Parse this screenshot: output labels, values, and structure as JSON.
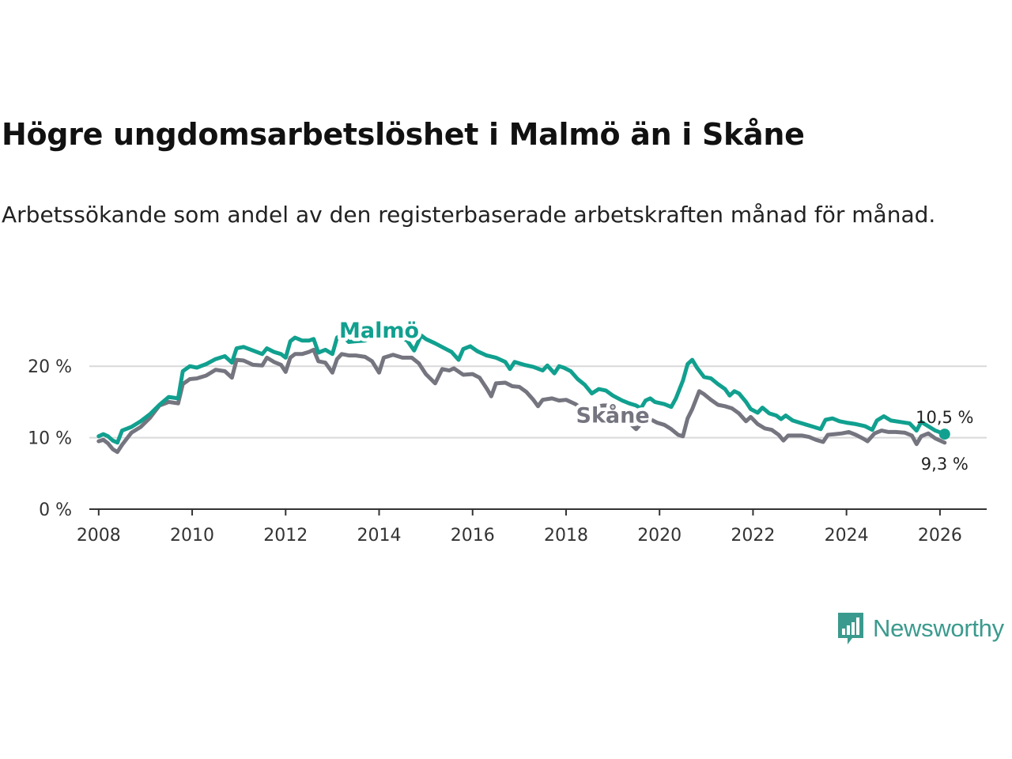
{
  "title": "Högre ungdomsarbetslöshet i Malmö än i Skåne",
  "subtitle": "Arbetssökande som andel av den registerbaserade arbetskraften månad för månad.",
  "brand": {
    "name": "Newsworthy",
    "color": "#3b9a8e",
    "icon": "bar-chart-speech-bubble-icon"
  },
  "chart_data": {
    "type": "line",
    "xlim": [
      2007.8,
      2027.0
    ],
    "ylim": [
      0,
      25
    ],
    "xticks": [
      2008,
      2010,
      2012,
      2014,
      2016,
      2018,
      2020,
      2022,
      2024,
      2026
    ],
    "xtick_labels": [
      "2008",
      "2010",
      "2012",
      "2014",
      "2016",
      "2018",
      "2020",
      "2022",
      "2024",
      "2026"
    ],
    "yticks": [
      0,
      10,
      20
    ],
    "ytick_labels": [
      "0 %",
      "10 %",
      "20 %"
    ],
    "grid": "horizontal",
    "series": [
      {
        "name": "Malmö",
        "color": "#11a08f",
        "label_at": [
          2014.0,
          24.0
        ],
        "end_label": "10,5 %",
        "points": [
          [
            2008.0,
            10.2
          ],
          [
            2008.1,
            10.5
          ],
          [
            2008.2,
            10.2
          ],
          [
            2008.3,
            9.6
          ],
          [
            2008.4,
            9.3
          ],
          [
            2008.5,
            11.0
          ],
          [
            2008.7,
            11.5
          ],
          [
            2008.9,
            12.3
          ],
          [
            2009.1,
            13.3
          ],
          [
            2009.3,
            14.6
          ],
          [
            2009.5,
            15.7
          ],
          [
            2009.7,
            15.5
          ],
          [
            2009.8,
            19.3
          ],
          [
            2009.95,
            20.0
          ],
          [
            2010.1,
            19.8
          ],
          [
            2010.3,
            20.3
          ],
          [
            2010.5,
            21.0
          ],
          [
            2010.7,
            21.4
          ],
          [
            2010.85,
            20.5
          ],
          [
            2010.95,
            22.5
          ],
          [
            2011.1,
            22.7
          ],
          [
            2011.3,
            22.2
          ],
          [
            2011.5,
            21.7
          ],
          [
            2011.6,
            22.5
          ],
          [
            2011.75,
            22.0
          ],
          [
            2011.9,
            21.7
          ],
          [
            2012.0,
            21.2
          ],
          [
            2012.1,
            23.5
          ],
          [
            2012.2,
            24.0
          ],
          [
            2012.35,
            23.6
          ],
          [
            2012.5,
            23.6
          ],
          [
            2012.6,
            23.8
          ],
          [
            2012.7,
            21.9
          ],
          [
            2012.85,
            22.3
          ],
          [
            2013.0,
            21.7
          ],
          [
            2013.1,
            24.0
          ],
          [
            2013.2,
            24.4
          ],
          [
            2013.35,
            23.4
          ],
          [
            2013.5,
            23.5
          ],
          [
            2013.7,
            23.6
          ],
          [
            2013.85,
            24.1
          ],
          [
            2014.0,
            24.4
          ],
          [
            2014.2,
            24.6
          ],
          [
            2014.4,
            24.2
          ],
          [
            2014.6,
            23.6
          ],
          [
            2014.75,
            22.2
          ],
          [
            2014.9,
            24.3
          ],
          [
            2015.0,
            23.8
          ],
          [
            2015.2,
            23.2
          ],
          [
            2015.4,
            22.5
          ],
          [
            2015.55,
            22.0
          ],
          [
            2015.7,
            20.9
          ],
          [
            2015.8,
            22.4
          ],
          [
            2015.95,
            22.8
          ],
          [
            2016.1,
            22.1
          ],
          [
            2016.3,
            21.5
          ],
          [
            2016.5,
            21.2
          ],
          [
            2016.7,
            20.6
          ],
          [
            2016.8,
            19.6
          ],
          [
            2016.9,
            20.6
          ],
          [
            2017.1,
            20.2
          ],
          [
            2017.3,
            19.9
          ],
          [
            2017.5,
            19.4
          ],
          [
            2017.6,
            20.1
          ],
          [
            2017.75,
            19.0
          ],
          [
            2017.85,
            20.0
          ],
          [
            2017.95,
            19.8
          ],
          [
            2018.1,
            19.3
          ],
          [
            2018.25,
            18.2
          ],
          [
            2018.4,
            17.4
          ],
          [
            2018.55,
            16.2
          ],
          [
            2018.7,
            16.8
          ],
          [
            2018.85,
            16.6
          ],
          [
            2019.0,
            15.9
          ],
          [
            2019.2,
            15.2
          ],
          [
            2019.35,
            14.8
          ],
          [
            2019.5,
            14.5
          ],
          [
            2019.6,
            14.1
          ],
          [
            2019.7,
            15.2
          ],
          [
            2019.8,
            15.5
          ],
          [
            2019.9,
            15.0
          ],
          [
            2020.1,
            14.7
          ],
          [
            2020.25,
            14.3
          ],
          [
            2020.35,
            15.5
          ],
          [
            2020.5,
            18.0
          ],
          [
            2020.6,
            20.3
          ],
          [
            2020.7,
            20.9
          ],
          [
            2020.8,
            19.8
          ],
          [
            2020.95,
            18.5
          ],
          [
            2021.1,
            18.3
          ],
          [
            2021.25,
            17.5
          ],
          [
            2021.4,
            16.8
          ],
          [
            2021.5,
            15.9
          ],
          [
            2021.6,
            16.5
          ],
          [
            2021.7,
            16.2
          ],
          [
            2021.85,
            15.0
          ],
          [
            2021.95,
            14.0
          ],
          [
            2022.1,
            13.5
          ],
          [
            2022.2,
            14.2
          ],
          [
            2022.35,
            13.4
          ],
          [
            2022.5,
            13.1
          ],
          [
            2022.6,
            12.6
          ],
          [
            2022.7,
            13.1
          ],
          [
            2022.85,
            12.4
          ],
          [
            2023.0,
            12.1
          ],
          [
            2023.15,
            11.8
          ],
          [
            2023.3,
            11.5
          ],
          [
            2023.45,
            11.2
          ],
          [
            2023.55,
            12.5
          ],
          [
            2023.7,
            12.7
          ],
          [
            2023.85,
            12.3
          ],
          [
            2024.0,
            12.1
          ],
          [
            2024.2,
            11.9
          ],
          [
            2024.4,
            11.6
          ],
          [
            2024.55,
            11.1
          ],
          [
            2024.65,
            12.4
          ],
          [
            2024.8,
            13.0
          ],
          [
            2024.95,
            12.4
          ],
          [
            2025.15,
            12.2
          ],
          [
            2025.35,
            12.0
          ],
          [
            2025.5,
            11.0
          ],
          [
            2025.6,
            12.2
          ],
          [
            2025.75,
            11.6
          ],
          [
            2025.9,
            11.0
          ],
          [
            2026.1,
            10.5
          ]
        ]
      },
      {
        "name": "Skåne",
        "color": "#757580",
        "label_at": [
          2019.0,
          12.1
        ],
        "end_label": "9,3 %",
        "points": [
          [
            2008.0,
            9.5
          ],
          [
            2008.1,
            9.7
          ],
          [
            2008.2,
            9.2
          ],
          [
            2008.3,
            8.4
          ],
          [
            2008.4,
            8.0
          ],
          [
            2008.5,
            9.0
          ],
          [
            2008.7,
            10.7
          ],
          [
            2008.9,
            11.5
          ],
          [
            2009.1,
            12.8
          ],
          [
            2009.3,
            14.5
          ],
          [
            2009.5,
            15.0
          ],
          [
            2009.7,
            14.8
          ],
          [
            2009.8,
            17.5
          ],
          [
            2009.95,
            18.2
          ],
          [
            2010.1,
            18.3
          ],
          [
            2010.3,
            18.7
          ],
          [
            2010.5,
            19.5
          ],
          [
            2010.7,
            19.3
          ],
          [
            2010.85,
            18.4
          ],
          [
            2010.95,
            20.9
          ],
          [
            2011.1,
            20.8
          ],
          [
            2011.3,
            20.2
          ],
          [
            2011.5,
            20.1
          ],
          [
            2011.6,
            21.2
          ],
          [
            2011.75,
            20.6
          ],
          [
            2011.9,
            20.2
          ],
          [
            2012.0,
            19.2
          ],
          [
            2012.1,
            21.2
          ],
          [
            2012.2,
            21.7
          ],
          [
            2012.35,
            21.7
          ],
          [
            2012.5,
            22.0
          ],
          [
            2012.6,
            22.3
          ],
          [
            2012.7,
            20.7
          ],
          [
            2012.85,
            20.5
          ],
          [
            2013.0,
            19.1
          ],
          [
            2013.1,
            21.0
          ],
          [
            2013.2,
            21.7
          ],
          [
            2013.35,
            21.5
          ],
          [
            2013.5,
            21.5
          ],
          [
            2013.7,
            21.3
          ],
          [
            2013.85,
            20.7
          ],
          [
            2014.0,
            19.1
          ],
          [
            2014.1,
            21.2
          ],
          [
            2014.3,
            21.6
          ],
          [
            2014.5,
            21.2
          ],
          [
            2014.7,
            21.2
          ],
          [
            2014.85,
            20.4
          ],
          [
            2015.0,
            18.9
          ],
          [
            2015.2,
            17.6
          ],
          [
            2015.35,
            19.6
          ],
          [
            2015.5,
            19.4
          ],
          [
            2015.6,
            19.7
          ],
          [
            2015.8,
            18.8
          ],
          [
            2016.0,
            18.9
          ],
          [
            2016.15,
            18.4
          ],
          [
            2016.3,
            16.9
          ],
          [
            2016.4,
            15.8
          ],
          [
            2016.5,
            17.6
          ],
          [
            2016.7,
            17.7
          ],
          [
            2016.85,
            17.2
          ],
          [
            2017.0,
            17.1
          ],
          [
            2017.15,
            16.4
          ],
          [
            2017.3,
            15.3
          ],
          [
            2017.4,
            14.4
          ],
          [
            2017.5,
            15.3
          ],
          [
            2017.7,
            15.5
          ],
          [
            2017.85,
            15.2
          ],
          [
            2018.0,
            15.3
          ],
          [
            2018.2,
            14.7
          ],
          [
            2018.35,
            14.0
          ],
          [
            2018.5,
            13.4
          ],
          [
            2018.6,
            14.3
          ],
          [
            2018.8,
            14.5
          ],
          [
            2018.95,
            14.5
          ],
          [
            2019.1,
            13.8
          ],
          [
            2019.25,
            12.7
          ],
          [
            2019.4,
            11.8
          ],
          [
            2019.5,
            11.2
          ],
          [
            2019.65,
            12.3
          ],
          [
            2019.8,
            12.6
          ],
          [
            2019.95,
            12.1
          ],
          [
            2020.1,
            11.8
          ],
          [
            2020.25,
            11.2
          ],
          [
            2020.4,
            10.4
          ],
          [
            2020.5,
            10.2
          ],
          [
            2020.6,
            12.7
          ],
          [
            2020.7,
            14.0
          ],
          [
            2020.85,
            16.5
          ],
          [
            2020.95,
            16.1
          ],
          [
            2021.1,
            15.3
          ],
          [
            2021.25,
            14.6
          ],
          [
            2021.4,
            14.4
          ],
          [
            2021.55,
            14.1
          ],
          [
            2021.7,
            13.4
          ],
          [
            2021.85,
            12.3
          ],
          [
            2021.95,
            12.9
          ],
          [
            2022.1,
            11.9
          ],
          [
            2022.25,
            11.3
          ],
          [
            2022.4,
            11.1
          ],
          [
            2022.55,
            10.4
          ],
          [
            2022.65,
            9.6
          ],
          [
            2022.75,
            10.3
          ],
          [
            2022.9,
            10.3
          ],
          [
            2023.05,
            10.3
          ],
          [
            2023.2,
            10.1
          ],
          [
            2023.35,
            9.7
          ],
          [
            2023.5,
            9.4
          ],
          [
            2023.6,
            10.4
          ],
          [
            2023.75,
            10.5
          ],
          [
            2023.9,
            10.6
          ],
          [
            2024.05,
            10.8
          ],
          [
            2024.2,
            10.4
          ],
          [
            2024.35,
            9.9
          ],
          [
            2024.45,
            9.5
          ],
          [
            2024.6,
            10.6
          ],
          [
            2024.75,
            11.0
          ],
          [
            2024.9,
            10.8
          ],
          [
            2025.05,
            10.8
          ],
          [
            2025.25,
            10.7
          ],
          [
            2025.4,
            10.3
          ],
          [
            2025.5,
            9.1
          ],
          [
            2025.6,
            10.2
          ],
          [
            2025.75,
            10.6
          ],
          [
            2025.9,
            9.9
          ],
          [
            2026.1,
            9.3
          ]
        ]
      }
    ]
  }
}
